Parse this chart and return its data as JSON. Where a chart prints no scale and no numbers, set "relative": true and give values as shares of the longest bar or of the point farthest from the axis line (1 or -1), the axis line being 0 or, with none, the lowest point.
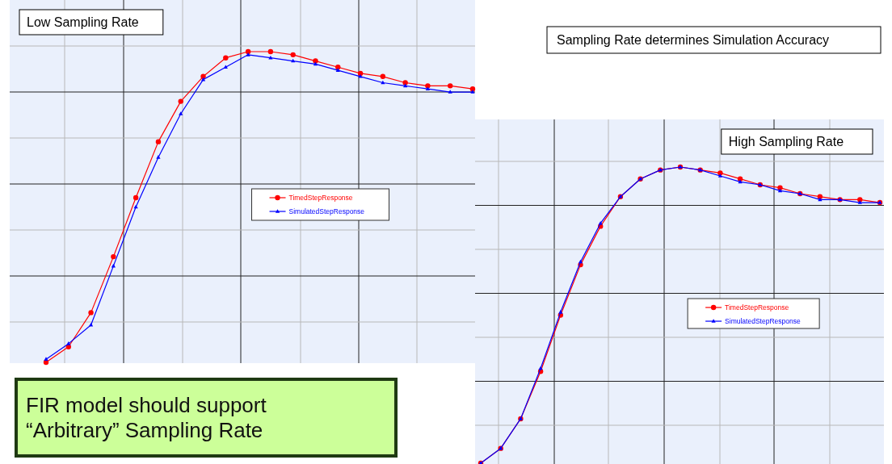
{
  "chart_data": [
    {
      "type": "line",
      "title": "Low Sampling Rate",
      "relative": true,
      "grid": true,
      "legend": "right",
      "categories": [
        null,
        null,
        null,
        null,
        null,
        null,
        null,
        null,
        null,
        null,
        null,
        null,
        null,
        null,
        null,
        null,
        null,
        null,
        null,
        null
      ],
      "annotations": [
        "FIR model should support “Arbitrary” Sampling Rate"
      ],
      "series": [
        {
          "name": "TimedStepResponse",
          "color": "#ff0000",
          "marker": "circle",
          "values": [
            0,
            0.05,
            0.16,
            0.34,
            0.53,
            0.71,
            0.84,
            0.92,
            0.98,
            1,
            1,
            0.99,
            0.97,
            0.95,
            0.93,
            0.92,
            0.9,
            0.89,
            0.89,
            0.88
          ]
        },
        {
          "name": "SimulatedStepResponse",
          "color": "#0000ff",
          "marker": "triangle",
          "values": [
            0.01,
            0.06,
            0.12,
            0.31,
            0.5,
            0.66,
            0.8,
            0.91,
            0.95,
            0.99,
            0.98,
            0.97,
            0.96,
            0.94,
            0.92,
            0.9,
            0.89,
            0.88,
            0.87,
            0.87
          ]
        }
      ]
    },
    {
      "type": "line",
      "title": "High Sampling Rate",
      "relative": true,
      "grid": true,
      "legend": "right",
      "categories": [
        null,
        null,
        null,
        null,
        null,
        null,
        null,
        null,
        null,
        null,
        null,
        null,
        null,
        null,
        null,
        null,
        null,
        null,
        null,
        null,
        null
      ],
      "annotations": [
        "Sampling Rate determines Simulation Accuracy"
      ],
      "series": [
        {
          "name": "TimedStepResponse",
          "color": "#ff0000",
          "marker": "circle",
          "values": [
            0,
            0.05,
            0.15,
            0.31,
            0.5,
            0.67,
            0.8,
            0.9,
            0.96,
            0.99,
            1,
            0.99,
            0.98,
            0.96,
            0.94,
            0.93,
            0.91,
            0.9,
            0.89,
            0.89,
            0.88
          ]
        },
        {
          "name": "SimulatedStepResponse",
          "color": "#0000ff",
          "marker": "triangle",
          "values": [
            0,
            0.05,
            0.15,
            0.32,
            0.51,
            0.68,
            0.81,
            0.9,
            0.96,
            0.99,
            1,
            0.99,
            0.97,
            0.95,
            0.94,
            0.92,
            0.91,
            0.89,
            0.89,
            0.88,
            0.88
          ]
        }
      ]
    }
  ]
}
